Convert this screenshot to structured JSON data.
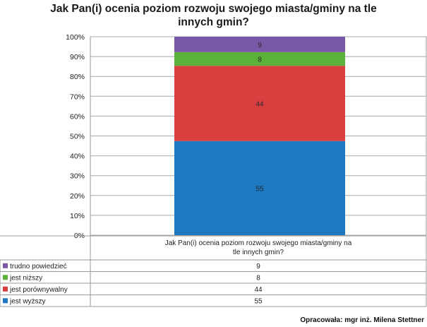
{
  "chart_data": {
    "type": "bar",
    "stacked": true,
    "title_lines": [
      "Jak Pan(i) ocenia poziom rozwoju swojego miasta/gminy na tle",
      "innych gmin?"
    ],
    "category_label_lines": [
      "Jak Pan(i) ocenia poziom rozwoju swojego miasta/gminy na",
      "tle innych gmin?"
    ],
    "y_axis": {
      "min": 0,
      "max": 100,
      "tick_labels": [
        "0%",
        "10%",
        "20%",
        "30%",
        "40%",
        "50%",
        "60%",
        "70%",
        "80%",
        "90%",
        "100%"
      ]
    },
    "grid": true,
    "legend_placement": "data-table",
    "series_bottom_to_top": [
      {
        "name": "jest wyższy",
        "value": 55,
        "color": "#1e78c2"
      },
      {
        "name": "jest porównywalny",
        "value": 44,
        "color": "#d93f3f"
      },
      {
        "name": "jest niższy",
        "value": 8,
        "color": "#5bb23b"
      },
      {
        "name": "trudno powiedzieć",
        "value": 9,
        "color": "#7a58a8"
      }
    ],
    "table_rows_top_to_bottom": [
      {
        "name": "trudno powiedzieć",
        "value": "9",
        "color": "#7a58a8"
      },
      {
        "name": "jest niższy",
        "value": "8",
        "color": "#5bb23b"
      },
      {
        "name": "jest porównywalny",
        "value": "44",
        "color": "#d93f3f"
      },
      {
        "name": "jest wyższy",
        "value": "55",
        "color": "#1e78c2"
      }
    ]
  },
  "footer": {
    "source": "Opracowała: mgr inż. Milena Stettner"
  }
}
